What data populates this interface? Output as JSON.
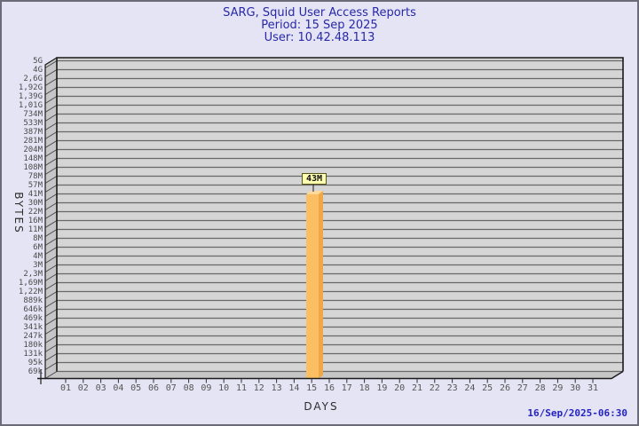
{
  "header": {
    "title": "SARG, Squid User Access Reports",
    "period": "Period: 15 Sep 2025",
    "user": "User: 10.42.48.113"
  },
  "chart_data": {
    "type": "bar",
    "title": "SARG, Squid User Access Reports",
    "subtitle": "Period: 15 Sep 2025 — User: 10.42.48.113",
    "xlabel": "DAYS",
    "ylabel": "BYTES",
    "scale": "log",
    "ylim": [
      "69k",
      "5G"
    ],
    "grid": true,
    "y_tick_labels": [
      "5G",
      "4G",
      "2,6G",
      "1,92G",
      "1,39G",
      "1,01G",
      "734M",
      "533M",
      "387M",
      "281M",
      "204M",
      "148M",
      "108M",
      "78M",
      "57M",
      "41M",
      "30M",
      "22M",
      "16M",
      "11M",
      "8M",
      "6M",
      "4M",
      "3M",
      "2,3M",
      "1,69M",
      "1,22M",
      "889k",
      "646k",
      "469k",
      "341k",
      "247k",
      "180k",
      "131k",
      "95k",
      "69k"
    ],
    "categories": [
      "01",
      "02",
      "03",
      "04",
      "05",
      "06",
      "07",
      "08",
      "09",
      "10",
      "11",
      "12",
      "13",
      "14",
      "15",
      "16",
      "17",
      "18",
      "19",
      "20",
      "21",
      "22",
      "23",
      "24",
      "25",
      "26",
      "27",
      "28",
      "29",
      "30",
      "31"
    ],
    "series": [
      {
        "name": "bytes",
        "values": [
          0,
          0,
          0,
          0,
          0,
          0,
          0,
          0,
          0,
          0,
          0,
          0,
          0,
          0,
          43000000,
          0,
          0,
          0,
          0,
          0,
          0,
          0,
          0,
          0,
          0,
          0,
          0,
          0,
          0,
          0,
          0
        ]
      }
    ],
    "data_labels": [
      {
        "category": "15",
        "label": "43M"
      }
    ]
  },
  "bar_label": "43M",
  "footer": {
    "timestamp": "16/Sep/2025-06:30"
  },
  "colors": {
    "page_bg": "#e4e4f4",
    "title_text": "#2828a8",
    "timestamp_text": "#2323c0",
    "plot_bg": "#d5d5d5",
    "wall_fill": "#c6c6c6",
    "floor_fill": "#c6c6c6",
    "grid_line": "#686868",
    "outline": "#1a1a1a",
    "bar_front": "#fcbe62",
    "bar_side": "#efa845",
    "bar_top": "#ffd999",
    "value_box_bg": "#ffffb2"
  }
}
